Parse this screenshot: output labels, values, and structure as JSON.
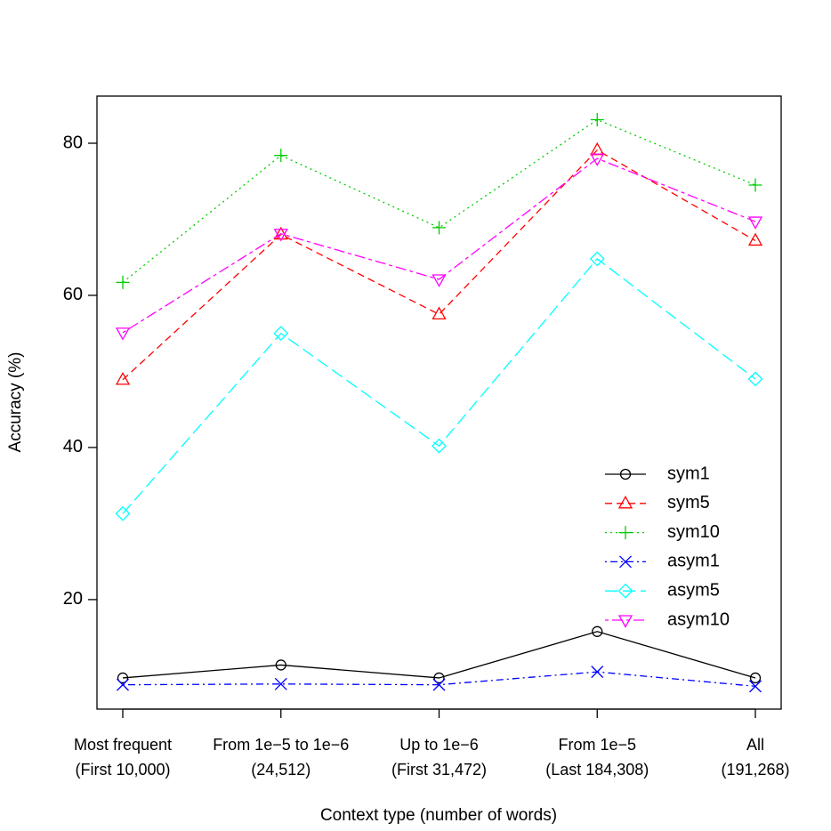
{
  "chart_data": {
    "type": "line",
    "x_label": "Context type (number of words)",
    "y_label": "Accuracy (%)",
    "categories": [
      [
        "Most frequent",
        "(First 10,000)"
      ],
      [
        "From 1e−5 to 1e−6",
        "(24,512)"
      ],
      [
        "Up to 1e−6",
        "(First 31,472)"
      ],
      [
        "From 1e−5",
        "(Last 184,308)"
      ],
      [
        "All",
        "(191,268)"
      ]
    ],
    "ylim": [
      5.6,
      86.2
    ],
    "yticks": [
      20,
      40,
      60,
      80
    ],
    "legend": "bottom-right",
    "series": [
      {
        "name": "sym1",
        "color": "#000000",
        "marker": "circle",
        "dash": "solid",
        "values": [
          9.7,
          11.4,
          9.7,
          15.8,
          9.7
        ]
      },
      {
        "name": "sym5",
        "color": "#ff0000",
        "marker": "triangle",
        "dash": "dashed",
        "values": [
          48.9,
          68.0,
          57.5,
          79.1,
          67.2
        ]
      },
      {
        "name": "sym10",
        "color": "#00cd00",
        "marker": "plus",
        "dash": "dotted",
        "values": [
          61.7,
          78.4,
          68.9,
          83.1,
          74.5
        ]
      },
      {
        "name": "asym1",
        "color": "#0000ff",
        "marker": "cross",
        "dash": "dotdash",
        "values": [
          8.8,
          8.9,
          8.8,
          10.5,
          8.6
        ]
      },
      {
        "name": "asym5",
        "color": "#00ffff",
        "marker": "diamond",
        "dash": "longdash",
        "values": [
          31.3,
          55.0,
          40.2,
          64.8,
          49.0
        ]
      },
      {
        "name": "asym10",
        "color": "#ff00ff",
        "marker": "down-triangle",
        "dash": "twodash",
        "values": [
          55.1,
          68.1,
          62.1,
          78.0,
          69.7
        ]
      }
    ]
  }
}
